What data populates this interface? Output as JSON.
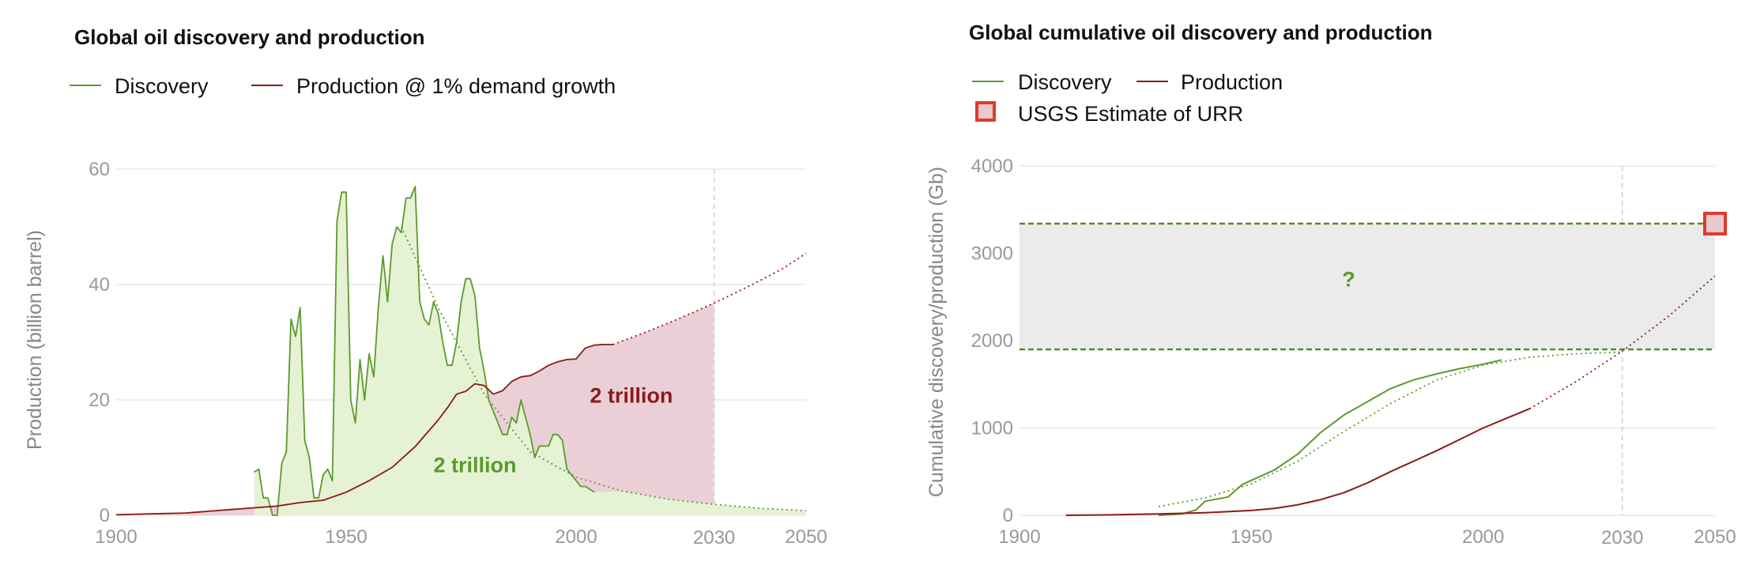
{
  "chart_data": [
    {
      "type": "line",
      "title": "Global oil discovery and production",
      "xlabel": "",
      "ylabel": "Production (billion barrel)",
      "xlim": [
        1900,
        2050
      ],
      "ylim": [
        0,
        60
      ],
      "x_ticks": [
        "1900",
        "1950",
        "2000",
        "2030",
        "2050"
      ],
      "y_ticks": [
        "0",
        "20",
        "40",
        "60"
      ],
      "highlight_tick": "2030",
      "grid": true,
      "legend_position": "top-left",
      "colors": {
        "discovery": "#5b9a2c",
        "production": "#8b1a1a",
        "discovery_fill": "#e6f2d4",
        "production_fill": "#ead0d6",
        "highlight": "#e53d2f"
      },
      "legend": [
        "Discovery",
        "Production @ 1% demand growth"
      ],
      "annotations": [
        {
          "text": "2 trillion",
          "series": "Discovery",
          "x": 1978,
          "y": 7.5
        },
        {
          "text": "2 trillion",
          "series": "Production",
          "x": 2012,
          "y": 19.5
        }
      ],
      "series": [
        {
          "name": "Discovery",
          "x": [
            1930,
            1931,
            1932,
            1933,
            1934,
            1935,
            1936,
            1937,
            1938,
            1939,
            1940,
            1941,
            1942,
            1943,
            1944,
            1945,
            1946,
            1947,
            1948,
            1949,
            1950,
            1951,
            1952,
            1953,
            1954,
            1955,
            1956,
            1957,
            1958,
            1959,
            1960,
            1961,
            1962,
            1963,
            1964,
            1965,
            1966,
            1967,
            1968,
            1969,
            1970,
            1971,
            1972,
            1973,
            1974,
            1975,
            1976,
            1977,
            1978,
            1979,
            1980,
            1981,
            1982,
            1983,
            1984,
            1985,
            1986,
            1987,
            1988,
            1989,
            1990,
            1991,
            1992,
            1993,
            1994,
            1995,
            1996,
            1997,
            1998,
            1999,
            2000,
            2001,
            2002,
            2003,
            2004
          ],
          "values": [
            7.5,
            8,
            3,
            3,
            0,
            0,
            9,
            11,
            34,
            31,
            36,
            13,
            10,
            3,
            3,
            7,
            8,
            6,
            51,
            56,
            56,
            20,
            16,
            27,
            20,
            28,
            24,
            36,
            45,
            37,
            47,
            50,
            49,
            55,
            55,
            57,
            37,
            34,
            33,
            37,
            35,
            30,
            26,
            26,
            30,
            37,
            41,
            41,
            38,
            29,
            25,
            20,
            18,
            16,
            14,
            14,
            17,
            16,
            20,
            17,
            14,
            10,
            12,
            12,
            12,
            14,
            14,
            13,
            8,
            7,
            6,
            5,
            5,
            4.5,
            4
          ],
          "fit": {
            "x": [
              1962,
              1970,
              1980,
              1990,
              2000,
              2010,
              2020,
              2030,
              2040,
              2050
            ],
            "values": [
              50,
              36,
              21,
              11,
              6.6,
              4.2,
              2.8,
              1.9,
              1.2,
              0.8
            ]
          }
        },
        {
          "name": "Production @ 1% demand growth",
          "x": [
            1900,
            1905,
            1910,
            1915,
            1920,
            1925,
            1930,
            1935,
            1940,
            1945,
            1950,
            1955,
            1960,
            1965,
            1970,
            1972,
            1974,
            1976,
            1978,
            1980,
            1982,
            1984,
            1986,
            1988,
            1990,
            1992,
            1994,
            1996,
            1998,
            2000,
            2002,
            2004,
            2006,
            2008
          ],
          "values": [
            0.1,
            0.2,
            0.3,
            0.4,
            0.7,
            1.0,
            1.3,
            1.6,
            2.2,
            2.6,
            4.0,
            6.0,
            8.3,
            11.9,
            16.5,
            18.6,
            21.0,
            21.5,
            22.8,
            22.5,
            21,
            21.6,
            23.2,
            24.0,
            24.2,
            25,
            26,
            26.6,
            27,
            27.1,
            29,
            29.5,
            29.6,
            29.6
          ],
          "projection": {
            "x": [
              2008,
              2015,
              2020,
              2025,
              2030,
              2035,
              2040,
              2045,
              2050
            ],
            "values": [
              29.6,
              31.7,
              33.3,
              35.0,
              36.8,
              38.7,
              40.7,
              42.8,
              45.4
            ]
          }
        }
      ]
    },
    {
      "type": "line",
      "title": "Global cumulative oil discovery and production",
      "xlabel": "",
      "ylabel": "Cumulative discovery/production (Gb)",
      "xlim": [
        1900,
        2050
      ],
      "ylim": [
        0,
        4000
      ],
      "x_ticks": [
        "1900",
        "1950",
        "2000",
        "2030",
        "2050"
      ],
      "y_ticks": [
        "0",
        "1000",
        "2000",
        "3000",
        "4000"
      ],
      "highlight_tick": "2030",
      "grid": true,
      "legend_position": "top-left",
      "colors": {
        "discovery": "#5b9a2c",
        "production": "#8b1a1a",
        "band_fill": "#ebebeb",
        "band_line": "#4e8a1e",
        "urr_fill": "#e8c9d0",
        "urr_border": "#e03a2a",
        "highlight": "#e53d2f"
      },
      "legend": [
        "Discovery",
        "Production",
        "USGS Estimate of URR"
      ],
      "urr_band": [
        1900,
        3340
      ],
      "band_annotation": "?",
      "series": [
        {
          "name": "Discovery",
          "x": [
            1930,
            1935,
            1938,
            1940,
            1945,
            1948,
            1950,
            1955,
            1960,
            1965,
            1970,
            1975,
            1980,
            1985,
            1990,
            1995,
            2000,
            2004
          ],
          "values": [
            0,
            15,
            60,
            160,
            210,
            350,
            400,
            520,
            700,
            950,
            1150,
            1300,
            1450,
            1550,
            1620,
            1680,
            1730,
            1780
          ],
          "fit": {
            "x": [
              1930,
              1940,
              1950,
              1960,
              1970,
              1980,
              1990,
              2000,
              2010,
              2020,
              2030
            ],
            "values": [
              100,
              200,
              360,
              620,
              960,
              1280,
              1550,
              1720,
              1810,
              1850,
              1870
            ]
          }
        },
        {
          "name": "Production",
          "x": [
            1910,
            1920,
            1930,
            1940,
            1950,
            1955,
            1960,
            1965,
            1970,
            1975,
            1980,
            1985,
            1990,
            1995,
            2000,
            2005,
            2010
          ],
          "values": [
            0,
            5,
            15,
            30,
            55,
            80,
            120,
            180,
            260,
            370,
            500,
            620,
            740,
            870,
            1000,
            1110,
            1220
          ],
          "projection": {
            "x": [
              2010,
              2020,
              2030,
              2040,
              2050
            ],
            "values": [
              1220,
              1530,
              1880,
              2280,
              2740
            ]
          }
        }
      ]
    }
  ]
}
